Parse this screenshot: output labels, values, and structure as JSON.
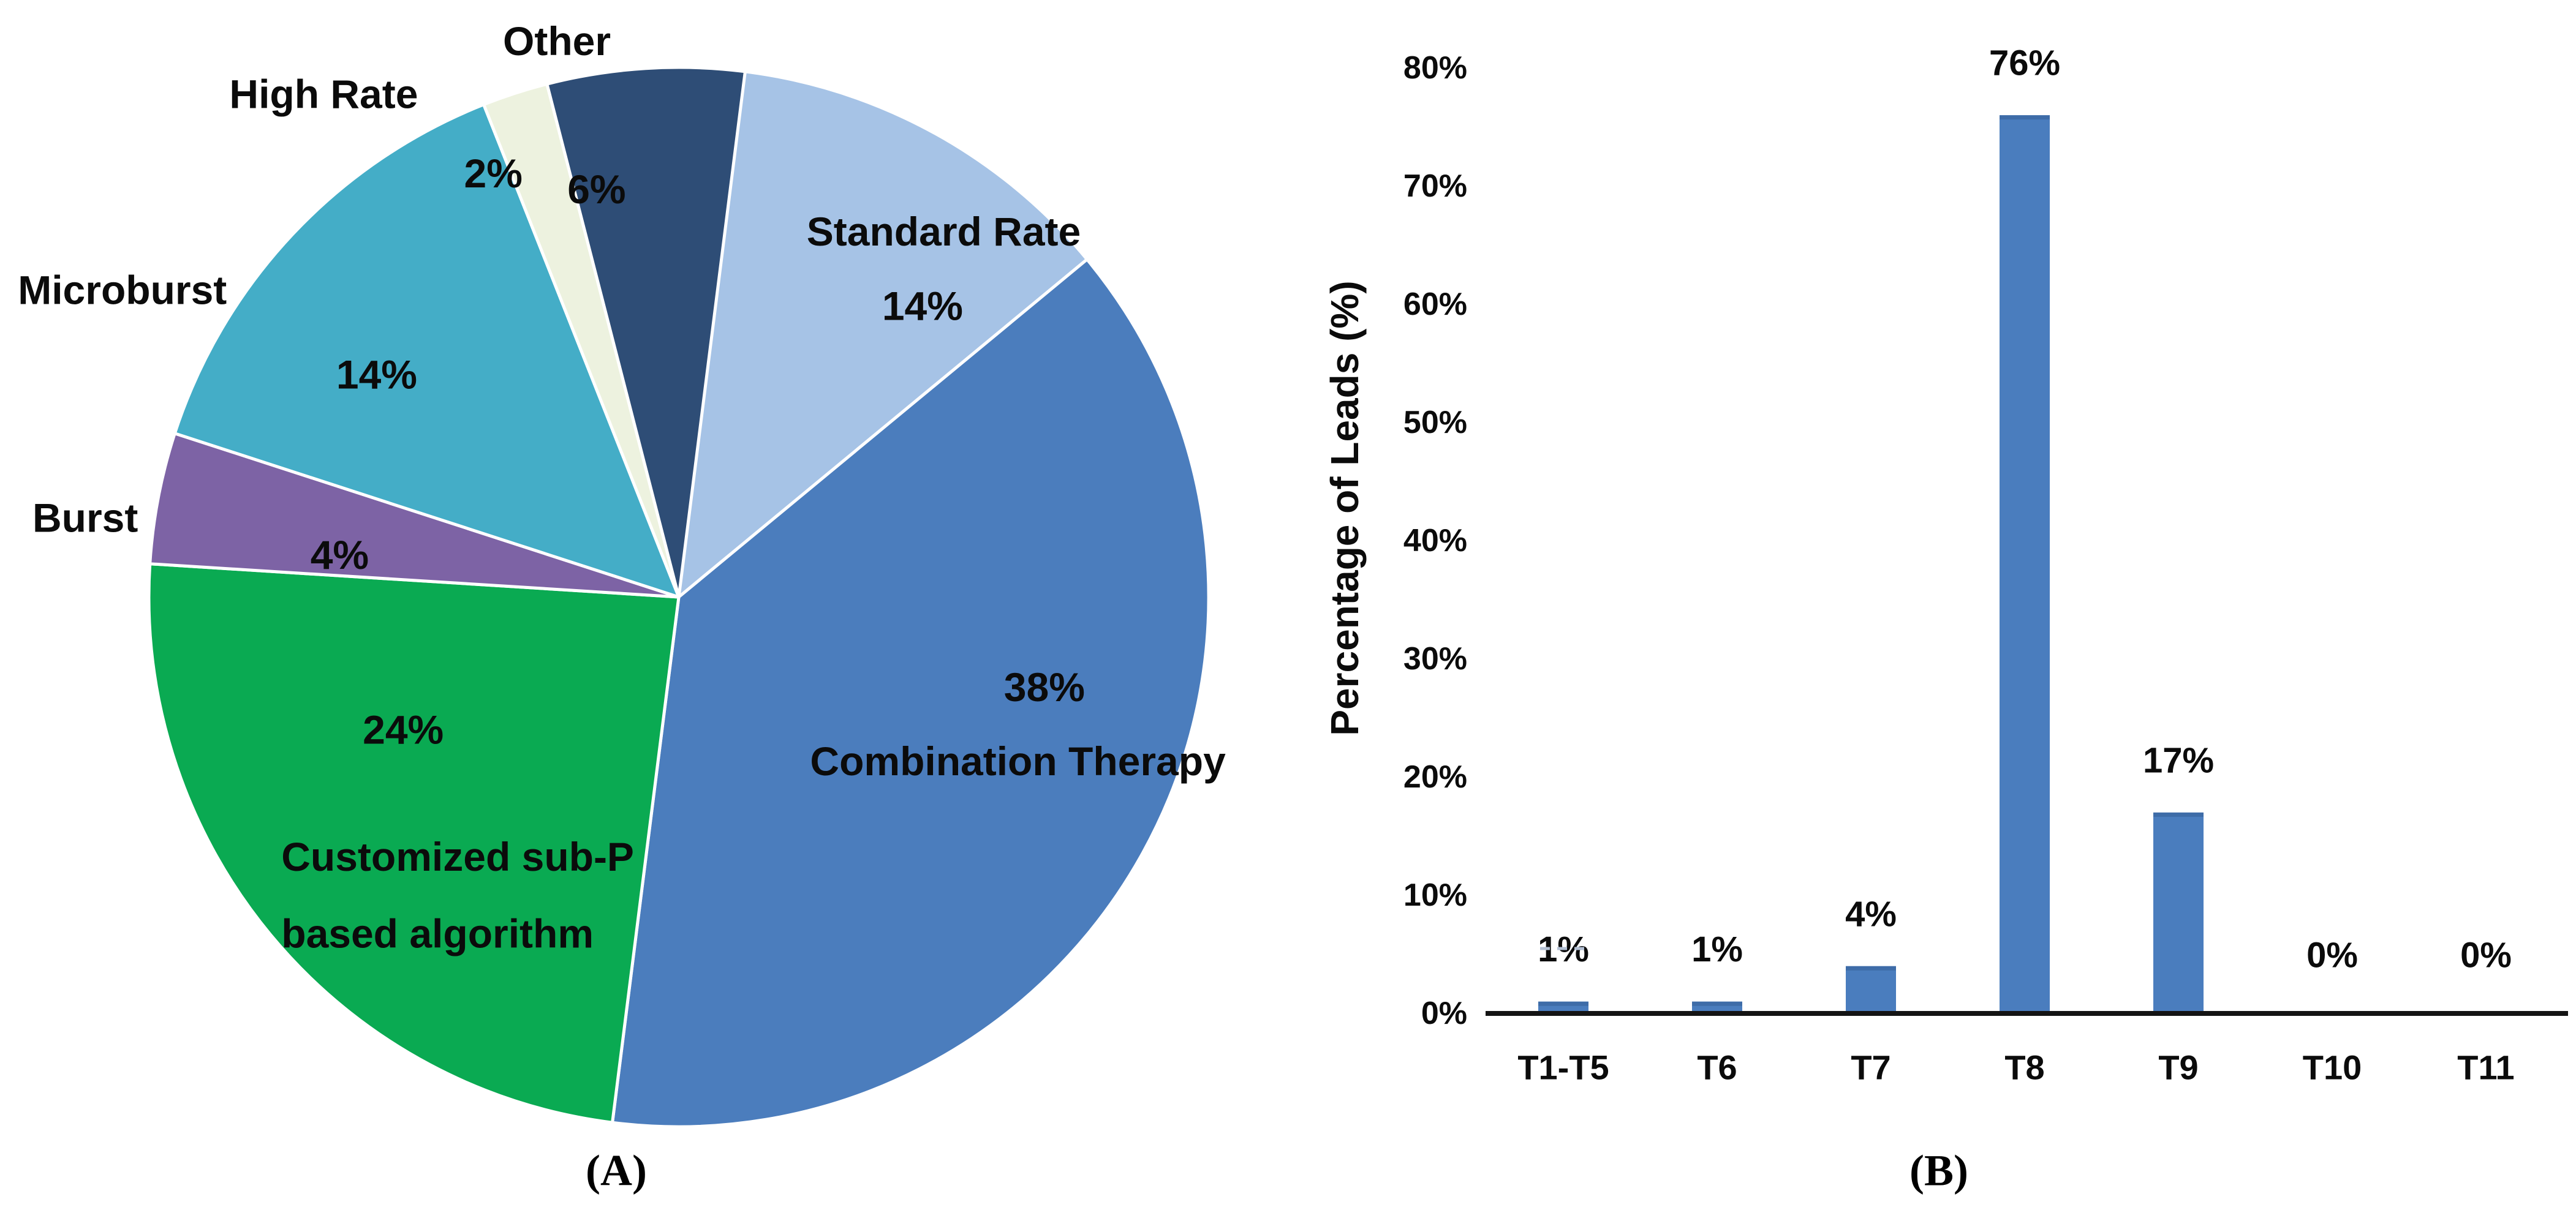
{
  "figure": {
    "panel_a_caption": "(A)",
    "panel_b_caption": "(B)",
    "background_color": "#ffffff",
    "text_color": "#0b0b0b"
  },
  "chart_data": [
    {
      "type": "pie",
      "caption": "(A)",
      "start_angle_deg": 0,
      "direction": "clockwise",
      "slice_border_color": "#ffffff",
      "slices": [
        {
          "label": "Standard Rate",
          "value": 14,
          "pct_label": "14%",
          "color": "#a6c3e6",
          "label_placement": "inside"
        },
        {
          "label": "Combination Therapy",
          "value": 38,
          "pct_label": "38%",
          "color": "#4b7dbd",
          "label_placement": "inside"
        },
        {
          "label": "Customized sub-P based algorithm",
          "label_lines": [
            "Customized sub-P",
            "based algorithm"
          ],
          "value": 24,
          "pct_label": "24%",
          "color": "#0aaa52",
          "label_placement": "inside"
        },
        {
          "label": "Burst",
          "value": 4,
          "pct_label": "4%",
          "color": "#7d63a5",
          "label_placement": "outside"
        },
        {
          "label": "Microburst",
          "value": 14,
          "pct_label": "14%",
          "color": "#44adc7",
          "label_placement": "outside"
        },
        {
          "label": "High Rate",
          "value": 2,
          "pct_label": "2%",
          "color": "#edf2df",
          "label_placement": "outside"
        },
        {
          "label": "Other",
          "value": 6,
          "pct_label": "6%",
          "color": "#2e4d76",
          "label_placement": "outside"
        }
      ]
    },
    {
      "type": "bar",
      "caption": "(B)",
      "categories": [
        "T1-T5",
        "T6",
        "T7",
        "T8",
        "T9",
        "T10",
        "T11"
      ],
      "values": [
        1,
        1,
        4,
        76,
        17,
        0,
        0
      ],
      "value_labels": [
        "1%",
        "1%",
        "4%",
        "76%",
        "17%",
        "0%",
        "0%"
      ],
      "ylabel": "Percentage of Leads (%)",
      "yticks": [
        "0%",
        "10%",
        "20%",
        "30%",
        "40%",
        "50%",
        "60%",
        "70%",
        "80%"
      ],
      "ylim": [
        0,
        80
      ],
      "grid": false,
      "legend": null,
      "bar_color": "#4a7dbe",
      "bar_cap_color": "#3e6ca8",
      "axis_color": "#141414"
    }
  ]
}
